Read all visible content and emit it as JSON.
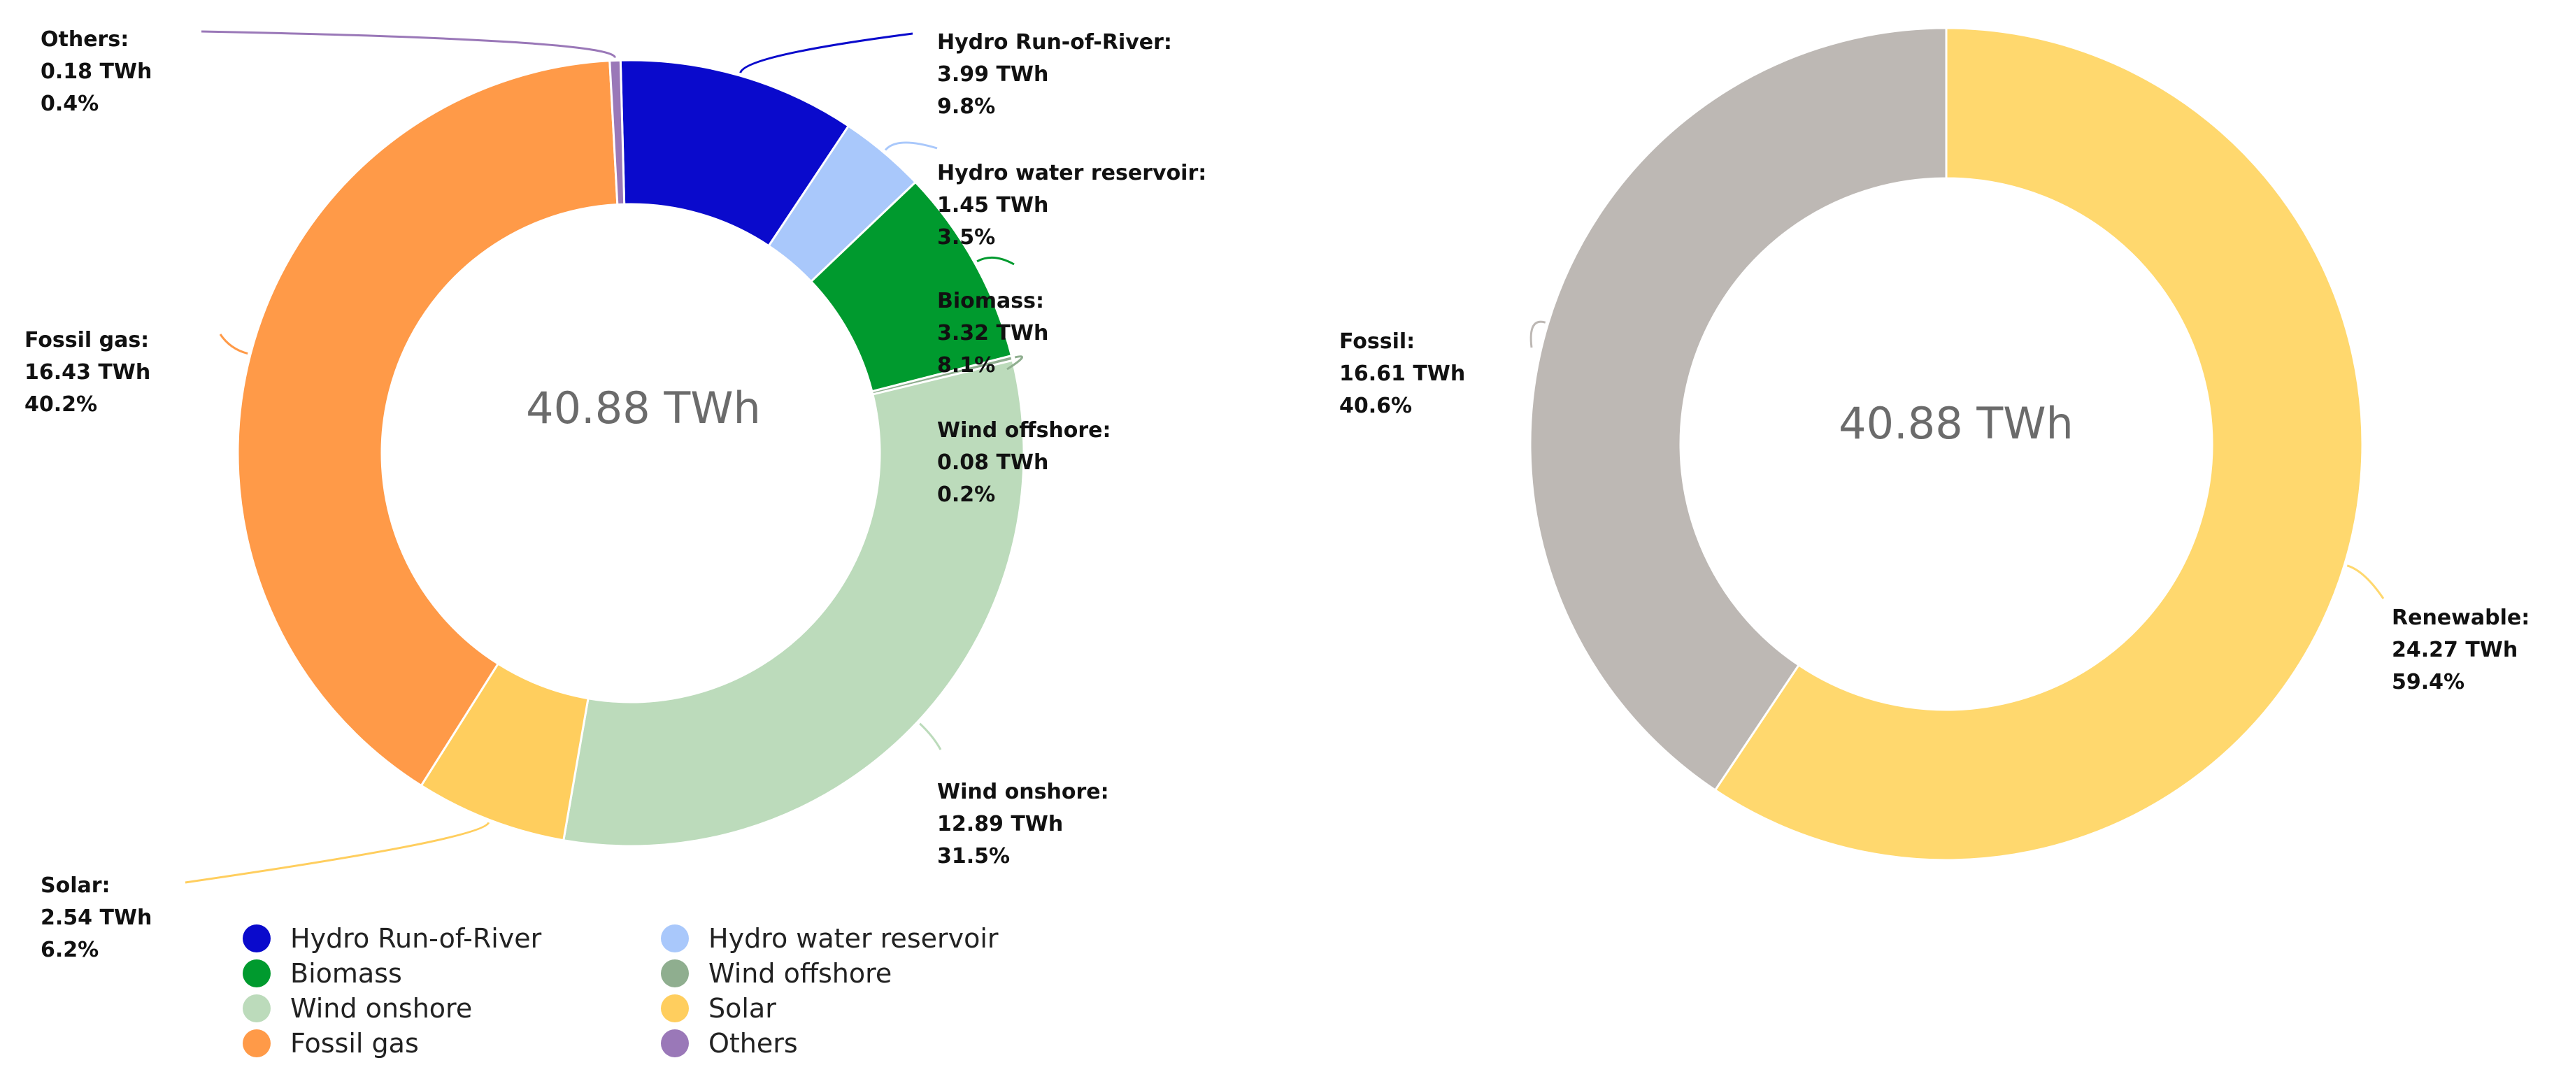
{
  "chart_data": [
    {
      "type": "pie",
      "variant": "donut",
      "title": "",
      "center_label": "40.88 TWh",
      "start_angle_deg": -1.5,
      "slices": [
        {
          "key": "hydro-run-of-river",
          "label": "Hydro Run-of-River",
          "value": 3.99,
          "value_text": "3.99 TWh",
          "percent": 9.8,
          "percent_text": "9.8%",
          "color": "#0a0acc"
        },
        {
          "key": "hydro-water-reservoir",
          "label": "Hydro water reservoir",
          "value": 1.45,
          "value_text": "1.45 TWh",
          "percent": 3.5,
          "percent_text": "3.5%",
          "color": "#a9c8fb"
        },
        {
          "key": "biomass",
          "label": "Biomass",
          "value": 3.32,
          "value_text": "3.32 TWh",
          "percent": 8.1,
          "percent_text": "8.1%",
          "color": "#009a2e"
        },
        {
          "key": "wind-offshore",
          "label": "Wind offshore",
          "value": 0.08,
          "value_text": "0.08 TWh",
          "percent": 0.2,
          "percent_text": "0.2%",
          "color": "#8fae8f"
        },
        {
          "key": "wind-onshore",
          "label": "Wind onshore",
          "value": 12.89,
          "value_text": "12.89 TWh",
          "percent": 31.5,
          "percent_text": "31.5%",
          "color": "#bcdbbb"
        },
        {
          "key": "solar",
          "label": "Solar",
          "value": 2.54,
          "value_text": "2.54 TWh",
          "percent": 6.2,
          "percent_text": "6.2%",
          "color": "#ffce5e"
        },
        {
          "key": "fossil-gas",
          "label": "Fossil gas",
          "value": 16.43,
          "value_text": "16.43 TWh",
          "percent": 40.2,
          "percent_text": "40.2%",
          "color": "#ff9a48"
        },
        {
          "key": "others",
          "label": "Others",
          "value": 0.18,
          "value_text": "0.18 TWh",
          "percent": 0.4,
          "percent_text": "0.4%",
          "color": "#9a78b8"
        }
      ],
      "legend": {
        "placement": "bottom",
        "entries": [
          "Hydro Run-of-River",
          "Hydro water reservoir",
          "Biomass",
          "Wind offshore",
          "Wind onshore",
          "Solar",
          "Fossil gas",
          "Others"
        ]
      }
    },
    {
      "type": "pie",
      "variant": "donut",
      "title": "",
      "center_label": "40.88 TWh",
      "start_angle_deg": 0,
      "slices": [
        {
          "key": "renewable",
          "label": "Renewable",
          "value": 24.27,
          "value_text": "24.27 TWh",
          "percent": 59.4,
          "percent_text": "59.4%",
          "color": "#ffd86e"
        },
        {
          "key": "fossil",
          "label": "Fossil",
          "value": 16.61,
          "value_text": "16.61 TWh",
          "percent": 40.6,
          "percent_text": "40.6%",
          "color": "#bdb8b4"
        }
      ]
    }
  ]
}
